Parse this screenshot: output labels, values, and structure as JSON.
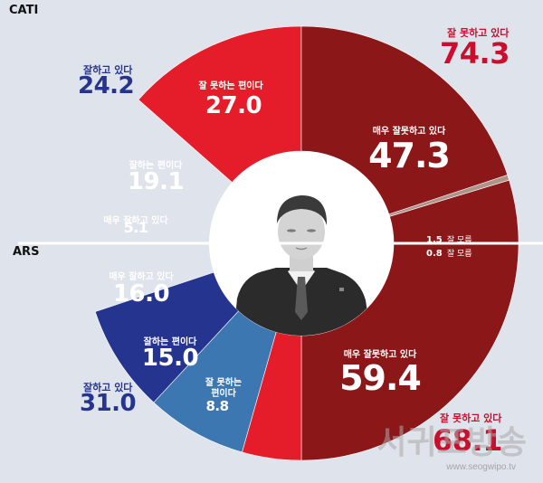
{
  "chart_data": [
    {
      "type": "pie",
      "title": "CATI",
      "slices": [
        {
          "label": "잘 못하는 편이다",
          "value": 27.0,
          "color": "#e51d2a"
        },
        {
          "label": "매우 잘못하고 있다",
          "value": 47.3,
          "color": "#8c1719"
        },
        {
          "label": "잘 모름",
          "value": 1.5,
          "color": "#ad9489"
        },
        {
          "label": "매우 잘하고 있다",
          "value": 5.1,
          "color": "#25358f"
        },
        {
          "label": "잘하는 편이다",
          "value": 19.1,
          "color": "#3d77b2"
        }
      ],
      "totals": {
        "positive": {
          "label": "잘하고 있다",
          "value": "24.2"
        },
        "negative": {
          "label": "잘 못하고 있다",
          "value": "74.3"
        }
      }
    },
    {
      "type": "pie",
      "title": "ARS",
      "slices": [
        {
          "label": "잘 모름",
          "value": 0.8,
          "color": "#ad9489"
        },
        {
          "label": "매우 잘못하고 있다",
          "value": 59.4,
          "color": "#8c1719"
        },
        {
          "label": "잘 못하는 편이다",
          "value": 8.8,
          "color": "#e51d2a"
        },
        {
          "label": "잘하는 편이다",
          "value": 15.0,
          "color": "#3d77b2"
        },
        {
          "label": "매우 잘하고 있다",
          "value": 16.0,
          "color": "#25358f"
        }
      ],
      "totals": {
        "positive": {
          "label": "잘하고 있다",
          "value": "31.0"
        },
        "negative": {
          "label": "잘 못하고 있다",
          "value": "68.1"
        }
      }
    }
  ],
  "labels": {
    "cati_title": "CATI",
    "ars_title": "ARS",
    "cati_neg_small": "잘 못하는 편이다",
    "cati_neg_small_val": "27.0",
    "cati_vneg": "매우 잘못하고 있다",
    "cati_vneg_val": "47.3",
    "cati_pos": "잘하는 편이다",
    "cati_pos_val": "19.1",
    "cati_vpos": "매우 잘하고 있다",
    "cati_vpos_val": "5.1",
    "cati_dk_val": "1.5",
    "cati_dk": "잘 모름",
    "ars_dk_val": "0.8",
    "ars_dk": "잘 모름",
    "ars_vpos": "매우 잘하고 있다",
    "ars_vpos_val": "16.0",
    "ars_pos": "잘하는 편이다",
    "ars_pos_val": "15.0",
    "ars_neg_small_1": "잘 못하는",
    "ars_neg_small_2": "편이다",
    "ars_neg_small_val": "8.8",
    "ars_vneg": "매우 잘못하고 있다",
    "ars_vneg_val": "59.4",
    "cati_total_pos_label": "잘하고 있다",
    "cati_total_pos_val": "24.2",
    "cati_total_neg_label": "잘 못하고 있다",
    "cati_total_neg_val": "74.3",
    "ars_total_pos_label": "잘하고 있다",
    "ars_total_pos_val": "31.0",
    "ars_total_neg_label": "잘 못하고 있다",
    "ars_total_neg_val": "68.1"
  },
  "watermark": {
    "name": "서귀포방송",
    "url": "www.seogwipo.tv"
  },
  "colors": {
    "background": "#dfe3eb",
    "very_negative": "#8c1719",
    "negative": "#e51d2a",
    "positive": "#3d77b2",
    "very_positive": "#25358f",
    "dont_know": "#ad9489"
  }
}
